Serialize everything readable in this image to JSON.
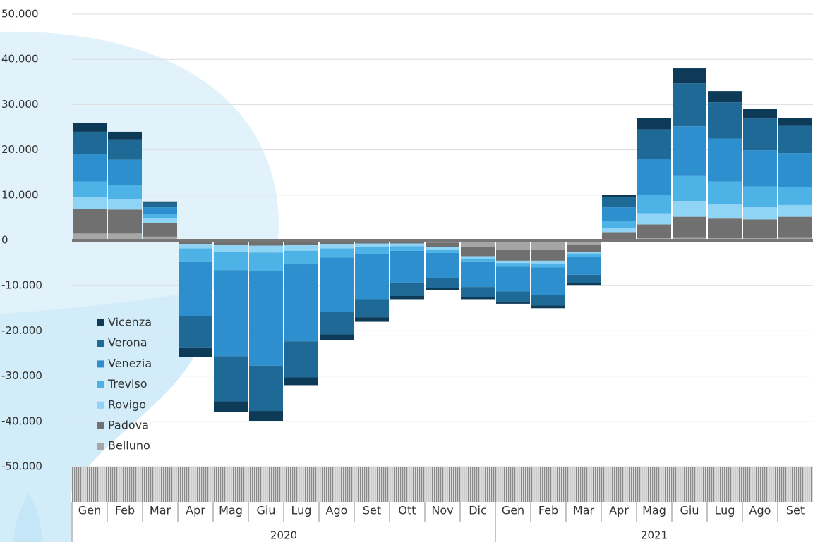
{
  "chart_data": {
    "type": "stacked_bar",
    "categories": [
      "Gen",
      "Feb",
      "Mar",
      "Apr",
      "Mag",
      "Giu",
      "Lug",
      "Ago",
      "Set",
      "Ott",
      "Nov",
      "Dic",
      "Gen",
      "Feb",
      "Mar",
      "Apr",
      "Mag",
      "Giu",
      "Lug",
      "Ago",
      "Set"
    ],
    "years": [
      "2020",
      "2021"
    ],
    "ylim": [
      -50000,
      50000
    ],
    "yticks": [
      {
        "value": 50000,
        "label": "50.000"
      },
      {
        "value": 40000,
        "label": "40.000"
      },
      {
        "value": 30000,
        "label": "30.000"
      },
      {
        "value": 20000,
        "label": "20.000"
      },
      {
        "value": 10000,
        "label": "10.000"
      },
      0,
      {
        "value": -10000,
        "label": "-10.000"
      },
      {
        "value": -20000,
        "label": "-20.000"
      },
      {
        "value": -30000,
        "label": "-30.000"
      },
      {
        "value": -40000,
        "label": "-40.000"
      },
      {
        "value": -50000,
        "label": "-50.000"
      }
    ],
    "grid": true,
    "series": [
      {
        "name": "Vicenza",
        "color": "#0d3b57",
        "values": [
          2000,
          1700,
          300,
          -2000,
          -2400,
          -2300,
          -1700,
          -1200,
          -1000,
          -700,
          -500,
          -500,
          -500,
          -600,
          -500,
          500,
          2500,
          3300,
          2500,
          2100,
          1700
        ]
      },
      {
        "name": "Verona",
        "color": "#1f6996",
        "values": [
          5000,
          4500,
          1000,
          -7000,
          -10000,
          -10000,
          -8000,
          -5000,
          -4000,
          -3000,
          -2200,
          -2200,
          -2200,
          -2400,
          -1900,
          2200,
          6500,
          9500,
          8000,
          7000,
          6000
        ]
      },
      {
        "name": "Venezia",
        "color": "#2e8fcf",
        "values": [
          6000,
          5500,
          1500,
          -12000,
          -19000,
          -21000,
          -17000,
          -12000,
          -10000,
          -7000,
          -5500,
          -5500,
          -5500,
          -6000,
          -4000,
          3000,
          8000,
          11000,
          9500,
          8000,
          7500
        ]
      },
      {
        "name": "Treviso",
        "color": "#4db3e6",
        "values": [
          3500,
          3200,
          1000,
          -3000,
          -4000,
          -4000,
          -3000,
          -2000,
          -1500,
          -1000,
          -800,
          -800,
          -800,
          -900,
          -700,
          1500,
          4000,
          5500,
          5000,
          4500,
          4000
        ]
      },
      {
        "name": "Rovigo",
        "color": "#8fd3f5",
        "values": [
          2500,
          2300,
          1000,
          -1000,
          -1500,
          -1500,
          -1200,
          -1000,
          -800,
          -600,
          -500,
          -500,
          -500,
          -600,
          -400,
          1000,
          2500,
          3500,
          3200,
          2800,
          2600
        ]
      },
      {
        "name": "Padova",
        "color": "#707070",
        "values": [
          5500,
          5300,
          3000,
          -600,
          -800,
          -900,
          -800,
          -600,
          -500,
          -500,
          -1000,
          -2000,
          -2500,
          -2500,
          -1500,
          1500,
          3000,
          4500,
          4200,
          4000,
          4500
        ]
      },
      {
        "name": "Belluno",
        "color": "#a6a6a6",
        "values": [
          1500,
          1500,
          800,
          -200,
          -300,
          -300,
          -300,
          -200,
          -200,
          -200,
          -500,
          -1500,
          -2000,
          -2000,
          -1000,
          300,
          500,
          700,
          600,
          600,
          700
        ]
      }
    ]
  }
}
